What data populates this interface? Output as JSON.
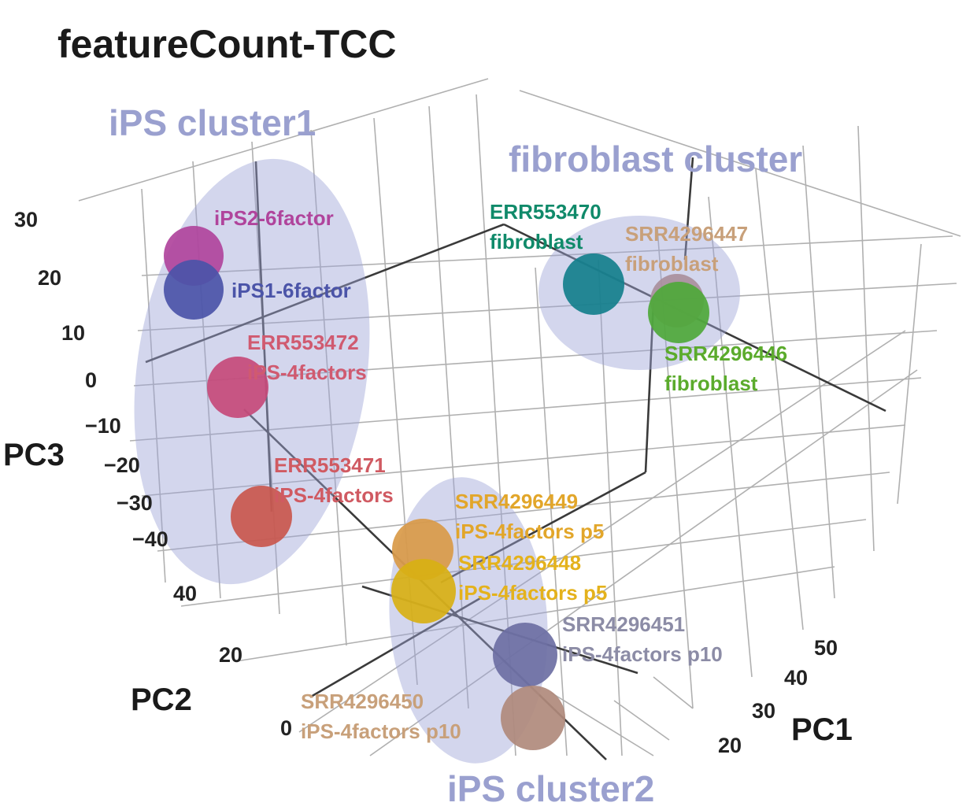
{
  "chart_data": {
    "type": "scatter",
    "projection": "3d",
    "title": "featureCount-TCC",
    "axes": {
      "x": {
        "label": "PC1",
        "ticks": [
          "20",
          "30",
          "40",
          "50"
        ]
      },
      "y": {
        "label": "PC2",
        "ticks": [
          "0",
          "20",
          "40"
        ]
      },
      "z": {
        "label": "PC3",
        "ticks": [
          "30",
          "20",
          "10",
          "0",
          "−10",
          "−20",
          "−30",
          "−40"
        ]
      }
    },
    "grid": true,
    "clusters": [
      {
        "id": "c1",
        "label": "iPS cluster1",
        "color": "#9ea3d6"
      },
      {
        "id": "c2",
        "label": "fibroblast cluster",
        "color": "#9ea3d6"
      },
      {
        "id": "c3",
        "label": "iPS cluster2",
        "color": "#9ea3d6"
      }
    ],
    "points": [
      {
        "id": "iPS2",
        "lines": [
          "iPS2-6factor"
        ],
        "color": "#b0449c",
        "label_color": "#b0449c",
        "z": 23
      },
      {
        "id": "iPS1",
        "lines": [
          "iPS1-6factor"
        ],
        "color": "#4b54a8",
        "label_color": "#4b54a8",
        "z": 17
      },
      {
        "id": "ERR553472",
        "lines": [
          "ERR553472",
          "iPS-4factors"
        ],
        "color": "#c64a7a",
        "label_color": "#d05a70",
        "z": -2
      },
      {
        "id": "ERR553471",
        "lines": [
          "ERR553471",
          "iPS-4factors"
        ],
        "color": "#c9574d",
        "label_color": "#d05a62",
        "z": -37
      },
      {
        "id": "ERR553470",
        "lines": [
          "ERR553470",
          "fibroblast"
        ],
        "color": "#137f8c",
        "label_color": "#108a6a",
        "z": 20
      },
      {
        "id": "SRR4296447",
        "lines": [
          "SRR4296447",
          "fibroblast"
        ],
        "color": "#a98f9c",
        "label_color": "#c8a07a",
        "z": 16
      },
      {
        "id": "SRR4296446",
        "lines": [
          "SRR4296446",
          "fibroblast"
        ],
        "color": "#4ea83a",
        "label_color": "#5bab2c",
        "z": 13
      },
      {
        "id": "SRR4296449",
        "lines": [
          "SRR4296449",
          "iPS-4factors p5"
        ],
        "color": "#d99a48",
        "label_color": "#e2a62a",
        "z": -44
      },
      {
        "id": "SRR4296448",
        "lines": [
          "SRR4296448",
          "iPS-4factors p5"
        ],
        "color": "#d8b014",
        "label_color": "#e4b21c",
        "z": -50
      },
      {
        "id": "SRR4296451",
        "lines": [
          "SRR4296451",
          "iPS-4factors p10"
        ],
        "color": "#6c6fa3",
        "label_color": "#8c8ca6",
        "z": -60
      },
      {
        "id": "SRR4296450",
        "lines": [
          "SRR4296450",
          "iPS-4factors p10"
        ],
        "color": "#b08a7c",
        "label_color": "#c8a07a",
        "z": -65
      }
    ]
  }
}
